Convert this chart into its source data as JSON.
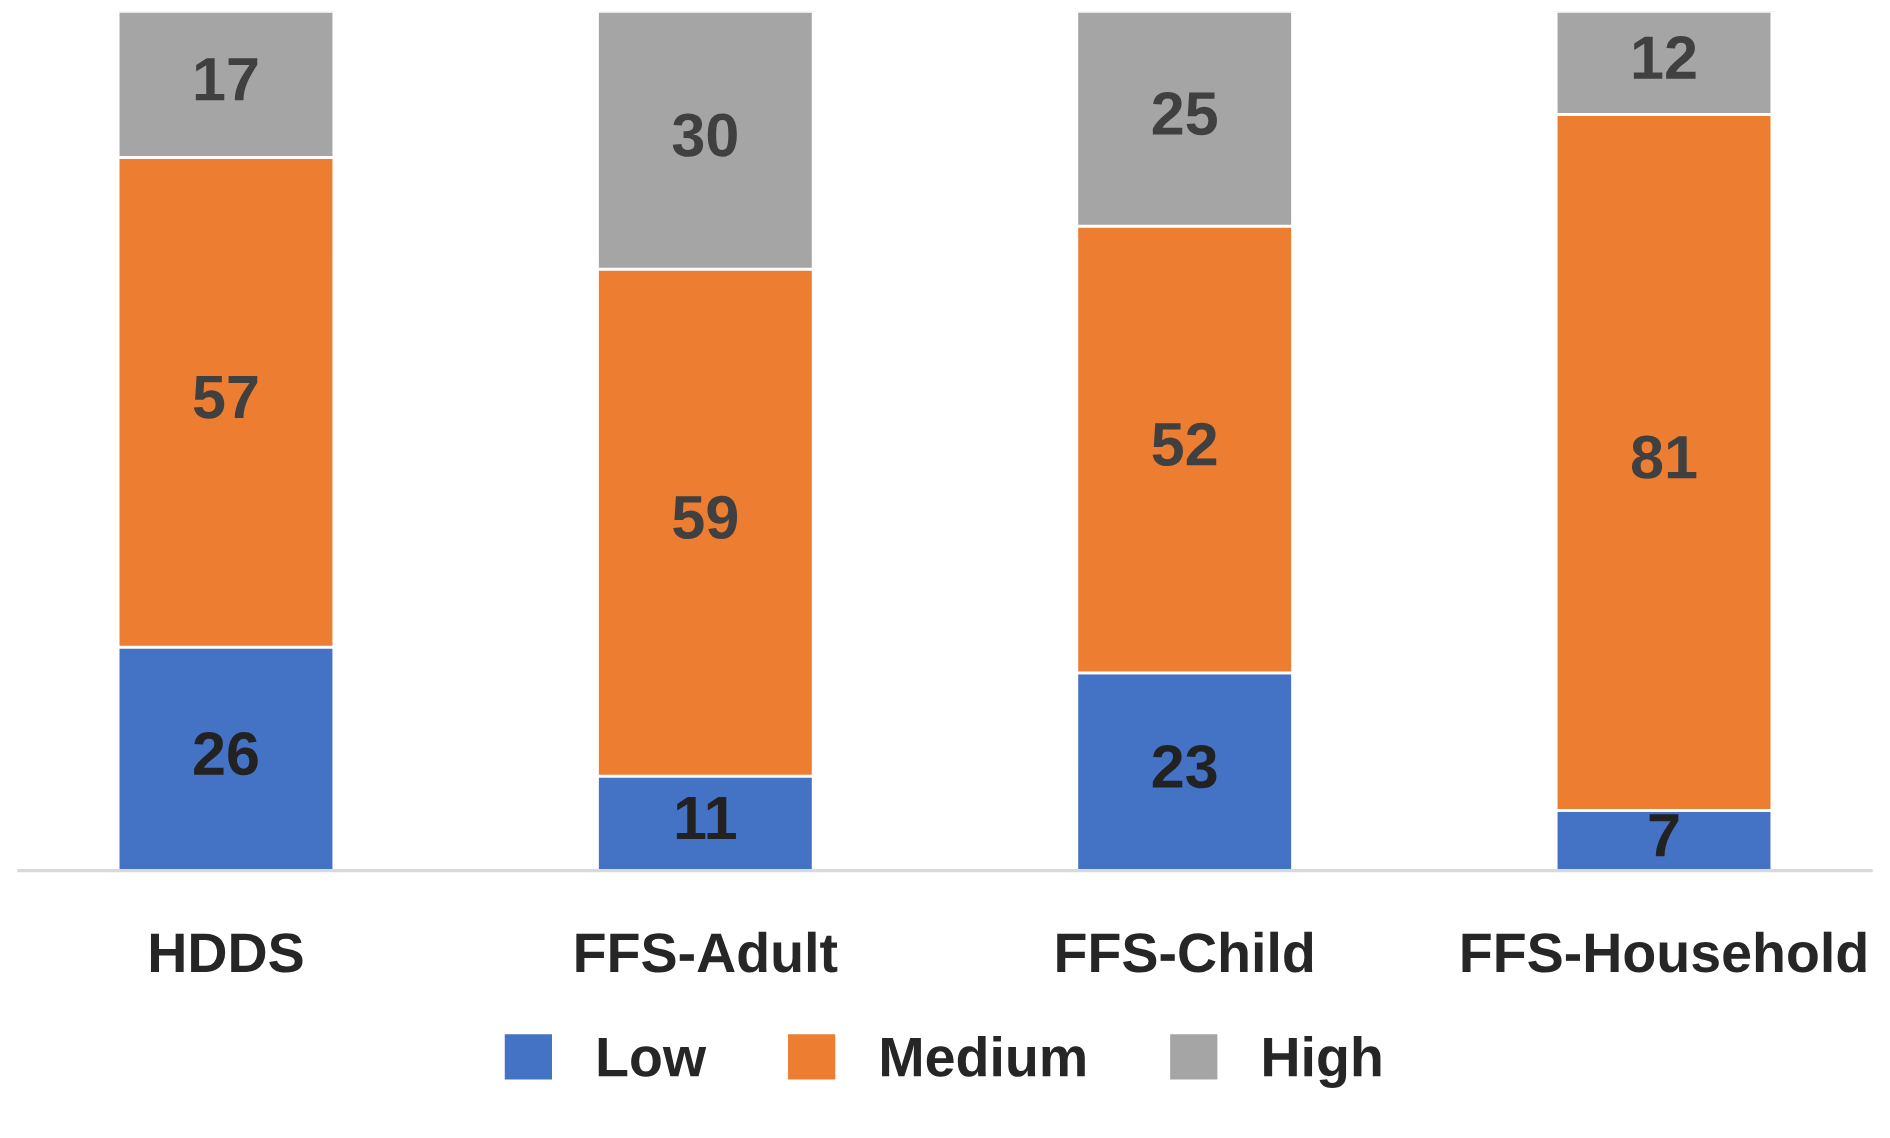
{
  "chart_data": {
    "type": "bar",
    "stacked": true,
    "data_labels": true,
    "legend": "bottom",
    "grid": false,
    "categories": [
      "HDDS",
      "FFS-Adult",
      "FFS-Child",
      "FFS-Household"
    ],
    "series": [
      {
        "name": "Low",
        "color": "#4472c4",
        "values": [
          26,
          11,
          23,
          7
        ]
      },
      {
        "name": "Medium",
        "color": "#ed7d31",
        "values": [
          57,
          59,
          52,
          81
        ]
      },
      {
        "name": "High",
        "color": "#a5a5a5",
        "values": [
          17,
          30,
          25,
          12
        ]
      }
    ]
  }
}
